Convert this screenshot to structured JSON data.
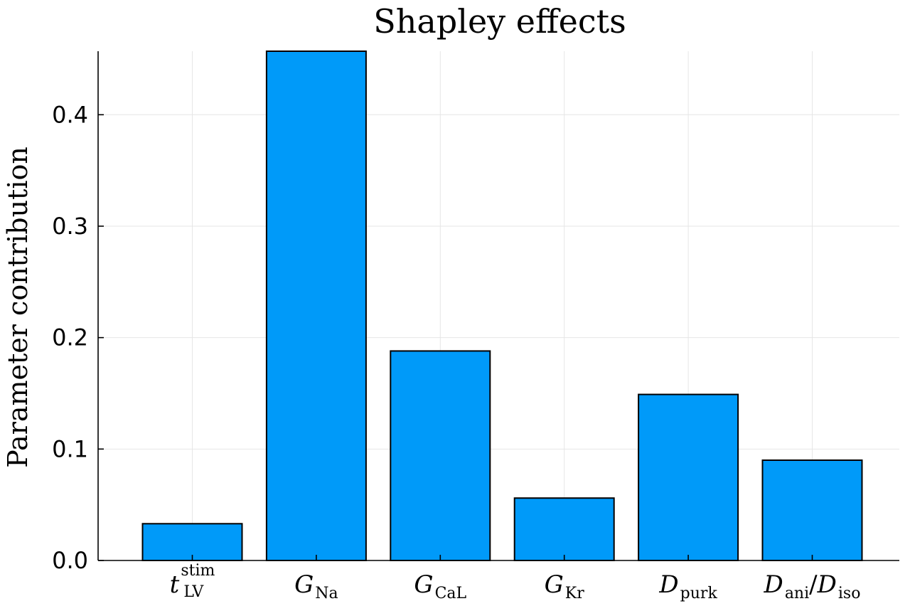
{
  "chart_data": {
    "type": "bar",
    "title": "Shapley effects",
    "xlabel": "",
    "ylabel": "Parameter contribution",
    "ylim": [
      0,
      0.457
    ],
    "yticks": [
      "0.0",
      "0.1",
      "0.2",
      "0.3",
      "0.4"
    ],
    "grid": true,
    "legend": "none",
    "bar_color": "#009af9",
    "categories": [
      {
        "base": "t",
        "sub": "LV",
        "sup": "stim"
      },
      {
        "base": "G",
        "sub": "Na"
      },
      {
        "base": "G",
        "sub": "CaL"
      },
      {
        "base": "G",
        "sub": "Kr"
      },
      {
        "base": "D",
        "sub": "purk"
      },
      {
        "base": "D",
        "sub": "ani",
        "slash": "/",
        "base2": "D",
        "sub2": "iso"
      }
    ],
    "values": [
      0.033,
      0.457,
      0.188,
      0.056,
      0.149,
      0.09
    ]
  }
}
